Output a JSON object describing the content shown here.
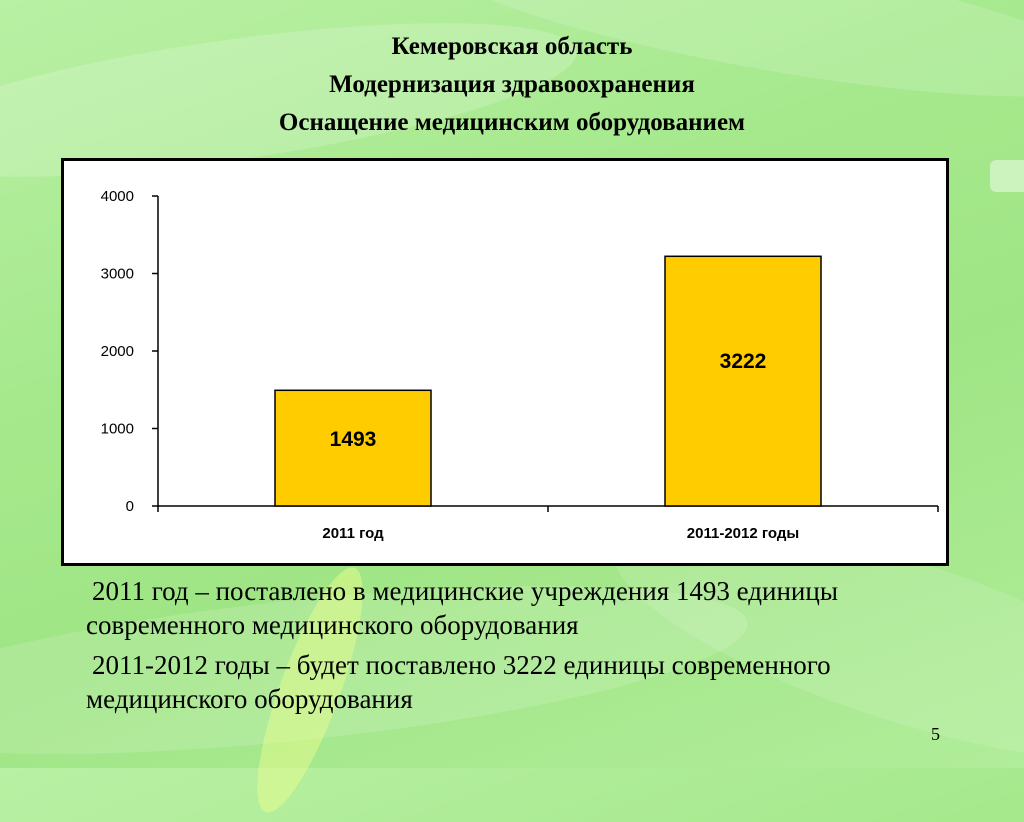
{
  "title": {
    "line1": "Кемеровская область",
    "line2": "Модернизация здравоохранения",
    "line3": "Оснащение медицинским оборудованием"
  },
  "chart_data": {
    "type": "bar",
    "title": "",
    "xlabel": "",
    "ylabel": "",
    "categories": [
      "2011 год",
      "2011-2012 годы"
    ],
    "values": [
      1493,
      3222
    ],
    "data_labels": [
      "1493",
      "3222"
    ],
    "ylim": [
      0,
      4000
    ],
    "yticks": [
      0,
      1000,
      2000,
      3000,
      4000
    ],
    "grid": false,
    "legend": "none",
    "bar_color": "#ffcc00"
  },
  "notes": [
    "2011 год – поставлено в медицинские учреждения 1493 единицы современного медицинского оборудования",
    "2011-2012 годы – будет поставлено 3222 единицы современного медицинского оборудования"
  ],
  "page_number": "5"
}
